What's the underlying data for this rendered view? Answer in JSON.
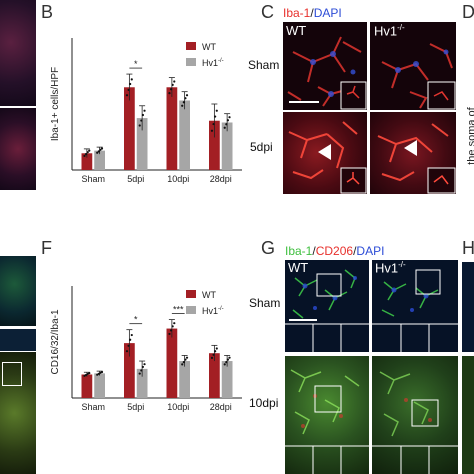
{
  "panels": {
    "B": "B",
    "C": "C",
    "D": "D",
    "F": "F",
    "G": "G",
    "H": "H"
  },
  "panel_c": {
    "stain_iba1": "Iba-1",
    "stain_sep": "/",
    "stain_dapi": "DAPI",
    "col_wt": "WT",
    "col_hv1": "Hv1",
    "col_hv1_sup": "-/-",
    "row_sham": "Sham",
    "row_5dpi": "5dpi"
  },
  "panel_d": {
    "ylabel_fragment": "the soma of"
  },
  "panel_g": {
    "stain_iba1": "Iba-1",
    "stain_sep1": "/",
    "stain_cd206": "CD206",
    "stain_sep2": "/",
    "stain_dapi": "DAPI",
    "col_wt": "WT",
    "col_hv1": "Hv1",
    "col_hv1_sup": "-/-",
    "row_sham": "Sham",
    "row_10dpi": "10dpi"
  },
  "colors": {
    "wt": "#a31f24",
    "hv1": "#a6a6a6",
    "iba1_red": "#e8302c",
    "dapi_blue": "#2b4bd6",
    "iba1_green": "#3fbf3f"
  },
  "chart_data": [
    {
      "type": "bar",
      "panel": "B",
      "ylabel": "Iba-1+ cells/HPF",
      "categories": [
        "Sham",
        "5dpi",
        "10dpi",
        "28dpi"
      ],
      "ylim": [
        0,
        300
      ],
      "significance": [
        {
          "category": "5dpi",
          "label": "*"
        }
      ],
      "series": [
        {
          "name": "WT",
          "legend": "WT",
          "values": [
            38,
            188,
            188,
            112
          ],
          "errors": [
            10,
            30,
            22,
            38
          ]
        },
        {
          "name": "Hv1-/-",
          "legend": "Hv1",
          "legend_sup": "-/-",
          "values": [
            44,
            118,
            158,
            108
          ],
          "errors": [
            8,
            28,
            20,
            20
          ]
        }
      ]
    },
    {
      "type": "bar",
      "panel": "F",
      "ylabel": "CD16/32/Iba-1",
      "categories": [
        "Sham",
        "5dpi",
        "10dpi",
        "28dpi"
      ],
      "ylim": [
        0,
        1.0
      ],
      "significance": [
        {
          "category": "5dpi",
          "label": "*"
        },
        {
          "category": "10dpi",
          "label": "***"
        }
      ],
      "series": [
        {
          "name": "WT",
          "legend": "WT",
          "values": [
            0.21,
            0.49,
            0.62,
            0.4
          ],
          "errors": [
            0.02,
            0.12,
            0.08,
            0.07
          ]
        },
        {
          "name": "Hv1-/-",
          "legend": "Hv1",
          "legend_sup": "-/-",
          "values": [
            0.22,
            0.26,
            0.33,
            0.33
          ],
          "errors": [
            0.02,
            0.07,
            0.05,
            0.05
          ]
        }
      ]
    }
  ]
}
